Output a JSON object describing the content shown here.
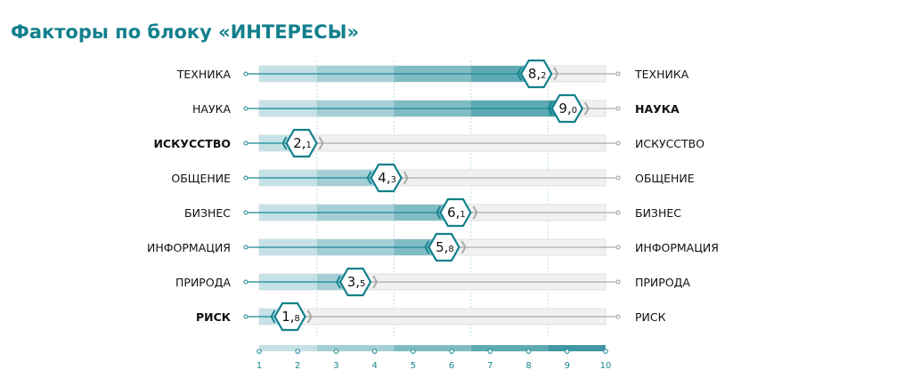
{
  "title": "Факторы по блоку «ИНТЕРЕСЫ»",
  "colors": {
    "title": "#12808c",
    "accent": "#1a8794",
    "bands": [
      "#c5e1e6",
      "#a3cfd5",
      "#80bcc4",
      "#5eaab4",
      "#3f98a4"
    ],
    "track": "#f1f1f1",
    "grey": "#999999"
  },
  "chart_data": {
    "type": "bar",
    "title": "Факторы по блоку «ИНТЕРЕСЫ»",
    "xlim": [
      1,
      10
    ],
    "ticks": [
      "1",
      "2",
      "3",
      "4",
      "5",
      "6",
      "7",
      "8",
      "9",
      "10"
    ],
    "band_edges": [
      1,
      2.5,
      4.5,
      6.5,
      8.5,
      10
    ],
    "rows": [
      {
        "label": "ТЕХНИКА",
        "value": 8.2,
        "int": "8",
        "dec": "2",
        "bold_left": false,
        "bold_right": false
      },
      {
        "label": "НАУКА",
        "value": 9.0,
        "int": "9",
        "dec": "0",
        "bold_left": false,
        "bold_right": true
      },
      {
        "label": "ИСКУССТВО",
        "value": 2.1,
        "int": "2",
        "dec": "1",
        "bold_left": true,
        "bold_right": false
      },
      {
        "label": "ОБЩЕНИЕ",
        "value": 4.3,
        "int": "4",
        "dec": "3",
        "bold_left": false,
        "bold_right": false
      },
      {
        "label": "БИЗНЕС",
        "value": 6.1,
        "int": "6",
        "dec": "1",
        "bold_left": false,
        "bold_right": false
      },
      {
        "label": "ИНФОРМАЦИЯ",
        "value": 5.8,
        "int": "5",
        "dec": "8",
        "bold_left": false,
        "bold_right": false
      },
      {
        "label": "ПРИРОДА",
        "value": 3.5,
        "int": "3",
        "dec": "5",
        "bold_left": false,
        "bold_right": false
      },
      {
        "label": "РИСК",
        "value": 1.8,
        "int": "1",
        "dec": "8",
        "bold_left": true,
        "bold_right": false
      }
    ]
  }
}
